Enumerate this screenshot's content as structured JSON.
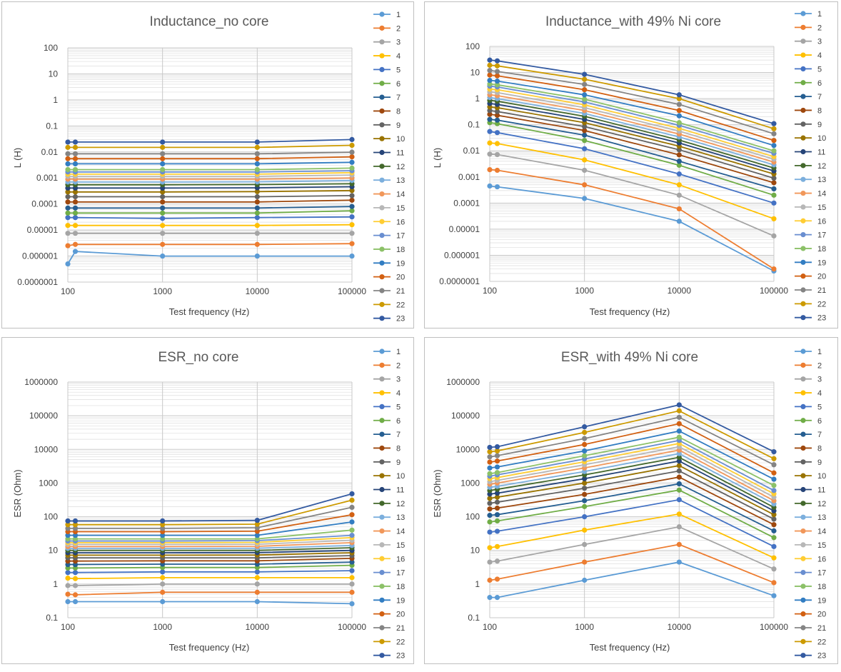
{
  "colors": [
    "#5b9bd5",
    "#ed7d31",
    "#a5a5a5",
    "#ffc000",
    "#4472c4",
    "#70ad47",
    "#255e91",
    "#9e480e",
    "#636363",
    "#997300",
    "#264478",
    "#43682b",
    "#7cafdd",
    "#f1975a",
    "#b7b7b7",
    "#ffcd33",
    "#698ed0",
    "#8cc168",
    "#327dc2",
    "#d26012",
    "#848484",
    "#cc9a00",
    "#335aa1"
  ],
  "chart_data": [
    {
      "type": "line",
      "title": "Inductance_no core",
      "xlabel": "Test frequency (Hz)",
      "ylabel": "L (H)",
      "x_scale": "log",
      "y_scale": "log",
      "xlim": [
        100,
        100000
      ],
      "ylim": [
        1e-07,
        100
      ],
      "x_ticks": [
        "100",
        "1000",
        "10000",
        "100000"
      ],
      "y_ticks": [
        "0.0000001",
        "0.000001",
        "0.00001",
        "0.0001",
        "0.001",
        "0.01",
        "0.1",
        "1",
        "10",
        "100"
      ],
      "x": [
        100,
        120,
        1000,
        10000,
        100000
      ],
      "legend": "right",
      "grid": true,
      "series": [
        {
          "name": "1",
          "values": [
            5e-07,
            1.5e-06,
            1e-06,
            1e-06,
            1e-06
          ]
        },
        {
          "name": "2",
          "values": [
            2.5e-06,
            2.8e-06,
            2.8e-06,
            2.8e-06,
            3e-06
          ]
        },
        {
          "name": "3",
          "values": [
            7.5e-06,
            7.5e-06,
            7.5e-06,
            7.5e-06,
            7.5e-06
          ]
        },
        {
          "name": "4",
          "values": [
            1.5e-05,
            1.5e-05,
            1.5e-05,
            1.5e-05,
            1.6e-05
          ]
        },
        {
          "name": "5",
          "values": [
            3e-05,
            3e-05,
            2.8e-05,
            3e-05,
            3.2e-05
          ]
        },
        {
          "name": "6",
          "values": [
            4.5e-05,
            4.5e-05,
            4.5e-05,
            4.5e-05,
            5.5e-05
          ]
        },
        {
          "name": "7",
          "values": [
            7e-05,
            7e-05,
            7e-05,
            7e-05,
            8e-05
          ]
        },
        {
          "name": "8",
          "values": [
            0.00012,
            0.00012,
            0.00012,
            0.00012,
            0.00014
          ]
        },
        {
          "name": "9",
          "values": [
            0.00019,
            0.00019,
            0.00019,
            0.00019,
            0.00021
          ]
        },
        {
          "name": "10",
          "values": [
            0.00029,
            0.00029,
            0.00029,
            0.0003,
            0.00033
          ]
        },
        {
          "name": "11",
          "values": [
            0.00041,
            0.00041,
            0.00041,
            0.00042,
            0.00046
          ]
        },
        {
          "name": "12",
          "values": [
            0.00055,
            0.00055,
            0.00055,
            0.00056,
            0.0006
          ]
        },
        {
          "name": "13",
          "values": [
            0.0007,
            0.0007,
            0.0007,
            0.00071,
            0.0008
          ]
        },
        {
          "name": "14",
          "values": [
            0.0009,
            0.0009,
            0.0009,
            0.0009,
            0.001
          ]
        },
        {
          "name": "15",
          "values": [
            0.00115,
            0.00115,
            0.00115,
            0.00115,
            0.0013
          ]
        },
        {
          "name": "16",
          "values": [
            0.0014,
            0.0014,
            0.0014,
            0.0014,
            0.0016
          ]
        },
        {
          "name": "17",
          "values": [
            0.0017,
            0.0017,
            0.0017,
            0.0017,
            0.0019
          ]
        },
        {
          "name": "18",
          "values": [
            0.0021,
            0.0021,
            0.0021,
            0.0021,
            0.0024
          ]
        },
        {
          "name": "19",
          "values": [
            0.0035,
            0.0035,
            0.0035,
            0.0035,
            0.004
          ]
        },
        {
          "name": "20",
          "values": [
            0.0055,
            0.0055,
            0.0055,
            0.0055,
            0.0065
          ]
        },
        {
          "name": "21",
          "values": [
            0.0085,
            0.0085,
            0.0085,
            0.0085,
            0.0098
          ]
        },
        {
          "name": "22",
          "values": [
            0.015,
            0.015,
            0.015,
            0.015,
            0.018
          ]
        },
        {
          "name": "23",
          "values": [
            0.024,
            0.024,
            0.024,
            0.024,
            0.03
          ]
        }
      ]
    },
    {
      "type": "line",
      "title": "Inductance_with 49% Ni core",
      "xlabel": "Test frequency (Hz)",
      "ylabel": "L (H)",
      "x_scale": "log",
      "y_scale": "log",
      "xlim": [
        100,
        100000
      ],
      "ylim": [
        1e-07,
        100
      ],
      "x_ticks": [
        "100",
        "1000",
        "10000",
        "100000"
      ],
      "y_ticks": [
        "0.0000001",
        "0.000001",
        "0.00001",
        "0.0001",
        "0.001",
        "0.01",
        "0.1",
        "1",
        "10",
        "100"
      ],
      "x": [
        100,
        120,
        1000,
        10000,
        100000
      ],
      "legend": "right",
      "grid": true,
      "series": [
        {
          "name": "1",
          "values": [
            0.00045,
            0.00042,
            0.00015,
            2e-05,
            2.5e-07
          ]
        },
        {
          "name": "2",
          "values": [
            0.0019,
            0.0018,
            0.0005,
            6e-05,
            3e-07
          ]
        },
        {
          "name": "3",
          "values": [
            0.0075,
            0.0072,
            0.0018,
            0.0002,
            5.5e-06
          ]
        },
        {
          "name": "4",
          "values": [
            0.02,
            0.019,
            0.0045,
            0.0005,
            2.5e-05
          ]
        },
        {
          "name": "5",
          "values": [
            0.055,
            0.05,
            0.012,
            0.0013,
            0.0001
          ]
        },
        {
          "name": "6",
          "values": [
            0.12,
            0.11,
            0.025,
            0.0028,
            0.0002
          ]
        },
        {
          "name": "7",
          "values": [
            0.16,
            0.15,
            0.04,
            0.004,
            0.00035
          ]
        },
        {
          "name": "8",
          "values": [
            0.25,
            0.23,
            0.06,
            0.007,
            0.0006
          ]
        },
        {
          "name": "9",
          "values": [
            0.35,
            0.32,
            0.085,
            0.011,
            0.0009
          ]
        },
        {
          "name": "10",
          "values": [
            0.48,
            0.45,
            0.12,
            0.015,
            0.0013
          ]
        },
        {
          "name": "11",
          "values": [
            0.65,
            0.6,
            0.16,
            0.02,
            0.0017
          ]
        },
        {
          "name": "12",
          "values": [
            0.85,
            0.8,
            0.21,
            0.026,
            0.0022
          ]
        },
        {
          "name": "13",
          "values": [
            1.1,
            1.0,
            0.27,
            0.034,
            0.0029
          ]
        },
        {
          "name": "14",
          "values": [
            1.4,
            1.3,
            0.35,
            0.044,
            0.0037
          ]
        },
        {
          "name": "15",
          "values": [
            1.8,
            1.7,
            0.45,
            0.057,
            0.0048
          ]
        },
        {
          "name": "16",
          "values": [
            2.3,
            2.2,
            0.58,
            0.073,
            0.006
          ]
        },
        {
          "name": "17",
          "values": [
            3.0,
            2.8,
            0.75,
            0.095,
            0.008
          ]
        },
        {
          "name": "18",
          "values": [
            3.6,
            3.4,
            0.95,
            0.12,
            0.01
          ]
        },
        {
          "name": "19",
          "values": [
            5.0,
            4.7,
            1.4,
            0.22,
            0.016
          ]
        },
        {
          "name": "20",
          "values": [
            8.0,
            7.5,
            2.2,
            0.35,
            0.025
          ]
        },
        {
          "name": "21",
          "values": [
            12.0,
            11.0,
            3.5,
            0.6,
            0.045
          ]
        },
        {
          "name": "22",
          "values": [
            19.0,
            18.0,
            5.5,
            1.0,
            0.07
          ]
        },
        {
          "name": "23",
          "values": [
            30.0,
            28.0,
            8.5,
            1.4,
            0.11
          ]
        }
      ]
    },
    {
      "type": "line",
      "title": "ESR_no core",
      "xlabel": "Test frequency (Hz)",
      "ylabel": "ESR (Ohm)",
      "x_scale": "log",
      "y_scale": "log",
      "xlim": [
        100,
        100000
      ],
      "ylim": [
        0.1,
        1000000
      ],
      "x_ticks": [
        "100",
        "1000",
        "10000",
        "100000"
      ],
      "y_ticks": [
        "0.1",
        "1",
        "10",
        "100",
        "1000",
        "10000",
        "100000",
        "1000000"
      ],
      "x": [
        100,
        120,
        1000,
        10000,
        100000
      ],
      "legend": "right",
      "grid": true,
      "series": [
        {
          "name": "1",
          "values": [
            0.3,
            0.3,
            0.3,
            0.3,
            0.26
          ]
        },
        {
          "name": "2",
          "values": [
            0.5,
            0.48,
            0.57,
            0.57,
            0.57
          ]
        },
        {
          "name": "3",
          "values": [
            0.9,
            0.9,
            1.0,
            1.0,
            1.0
          ]
        },
        {
          "name": "4",
          "values": [
            1.5,
            1.45,
            1.55,
            1.55,
            1.55
          ]
        },
        {
          "name": "5",
          "values": [
            2.2,
            2.2,
            2.3,
            2.3,
            2.5
          ]
        },
        {
          "name": "6",
          "values": [
            3.0,
            3.0,
            3.1,
            3.1,
            3.6
          ]
        },
        {
          "name": "7",
          "values": [
            3.8,
            3.8,
            3.9,
            3.9,
            4.5
          ]
        },
        {
          "name": "8",
          "values": [
            4.8,
            4.8,
            4.9,
            4.9,
            5.8
          ]
        },
        {
          "name": "9",
          "values": [
            6.0,
            6.0,
            6.0,
            6.0,
            7.0
          ]
        },
        {
          "name": "10",
          "values": [
            7.2,
            7.2,
            7.2,
            7.3,
            8.5
          ]
        },
        {
          "name": "11",
          "values": [
            8.5,
            8.5,
            8.5,
            8.6,
            10.0
          ]
        },
        {
          "name": "12",
          "values": [
            10.0,
            10.0,
            10.0,
            10.0,
            12.0
          ]
        },
        {
          "name": "13",
          "values": [
            11.5,
            11.5,
            11.5,
            11.6,
            14.0
          ]
        },
        {
          "name": "14",
          "values": [
            13.0,
            13.0,
            13.0,
            13.2,
            17.0
          ]
        },
        {
          "name": "15",
          "values": [
            15.0,
            15.0,
            15.0,
            15.2,
            20.0
          ]
        },
        {
          "name": "16",
          "values": [
            17.0,
            17.0,
            17.0,
            17.3,
            24.0
          ]
        },
        {
          "name": "17",
          "values": [
            19.0,
            19.0,
            19.0,
            19.5,
            28.0
          ]
        },
        {
          "name": "18",
          "values": [
            22.0,
            22.0,
            22.0,
            22.0,
            40.0
          ]
        },
        {
          "name": "19",
          "values": [
            28.0,
            28.0,
            28.0,
            28.0,
            70.0
          ]
        },
        {
          "name": "20",
          "values": [
            36.0,
            36.0,
            36.0,
            37.0,
            115.0
          ]
        },
        {
          "name": "21",
          "values": [
            45.0,
            45.0,
            45.0,
            47.0,
            190.0
          ]
        },
        {
          "name": "22",
          "values": [
            58.0,
            58.0,
            58.0,
            60.0,
            310.0
          ]
        },
        {
          "name": "23",
          "values": [
            75.0,
            75.0,
            75.0,
            78.0,
            480.0
          ]
        }
      ]
    },
    {
      "type": "line",
      "title": "ESR_with 49% Ni core",
      "xlabel": "Test frequency (Hz)",
      "ylabel": "ESR (Ohm)",
      "x_scale": "log",
      "y_scale": "log",
      "xlim": [
        100,
        100000
      ],
      "ylim": [
        0.1,
        1000000
      ],
      "x_ticks": [
        "100",
        "1000",
        "10000",
        "100000"
      ],
      "y_ticks": [
        "0.1",
        "1",
        "10",
        "100",
        "1000",
        "10000",
        "100000",
        "1000000"
      ],
      "x": [
        100,
        120,
        1000,
        10000,
        100000
      ],
      "legend": "right",
      "grid": true,
      "series": [
        {
          "name": "1",
          "values": [
            0.4,
            0.4,
            1.3,
            4.5,
            0.45
          ]
        },
        {
          "name": "2",
          "values": [
            1.3,
            1.4,
            4.5,
            15.0,
            1.1
          ]
        },
        {
          "name": "3",
          "values": [
            4.5,
            4.8,
            15.0,
            50.0,
            2.8
          ]
        },
        {
          "name": "4",
          "values": [
            12.0,
            13.0,
            40.0,
            120.0,
            6.0
          ]
        },
        {
          "name": "5",
          "values": [
            35.0,
            37.0,
            100.0,
            320.0,
            13.0
          ]
        },
        {
          "name": "6",
          "values": [
            70.0,
            75.0,
            200.0,
            620.0,
            24.0
          ]
        },
        {
          "name": "7",
          "values": [
            110.0,
            115.0,
            300.0,
            950.0,
            38.0
          ]
        },
        {
          "name": "8",
          "values": [
            170.0,
            180.0,
            460.0,
            1500.0,
            58.0
          ]
        },
        {
          "name": "9",
          "values": [
            250.0,
            270.0,
            700.0,
            2300.0,
            85.0
          ]
        },
        {
          "name": "10",
          "values": [
            350.0,
            380.0,
            1000.0,
            3300.0,
            115.0
          ]
        },
        {
          "name": "11",
          "values": [
            470.0,
            500.0,
            1350.0,
            4500.0,
            150.0
          ]
        },
        {
          "name": "12",
          "values": [
            600.0,
            650.0,
            1750.0,
            5800.0,
            190.0
          ]
        },
        {
          "name": "13",
          "values": [
            750.0,
            800.0,
            2200.0,
            7500.0,
            240.0
          ]
        },
        {
          "name": "14",
          "values": [
            920.0,
            1000.0,
            2800.0,
            9500.0,
            300.0
          ]
        },
        {
          "name": "15",
          "values": [
            1100.0,
            1200.0,
            3500.0,
            12000.0,
            380.0
          ]
        },
        {
          "name": "16",
          "values": [
            1350.0,
            1450.0,
            4300.0,
            15000.0,
            480.0
          ]
        },
        {
          "name": "17",
          "values": [
            1600.0,
            1750.0,
            5200.0,
            18500.0,
            600.0
          ]
        },
        {
          "name": "18",
          "values": [
            1900.0,
            2050.0,
            6500.0,
            23000.0,
            850.0
          ]
        },
        {
          "name": "19",
          "values": [
            2800.0,
            3000.0,
            9000.0,
            35000.0,
            1300.0
          ]
        },
        {
          "name": "20",
          "values": [
            4200.0,
            4500.0,
            14000.0,
            58000.0,
            2000.0
          ]
        },
        {
          "name": "21",
          "values": [
            6000.0,
            6500.0,
            21000.0,
            90000.0,
            3500.0
          ]
        },
        {
          "name": "22",
          "values": [
            8500.0,
            9000.0,
            32000.0,
            140000.0,
            5300.0
          ]
        },
        {
          "name": "23",
          "values": [
            11500.0,
            12000.0,
            47000.0,
            210000.0,
            8500.0
          ]
        }
      ]
    }
  ]
}
